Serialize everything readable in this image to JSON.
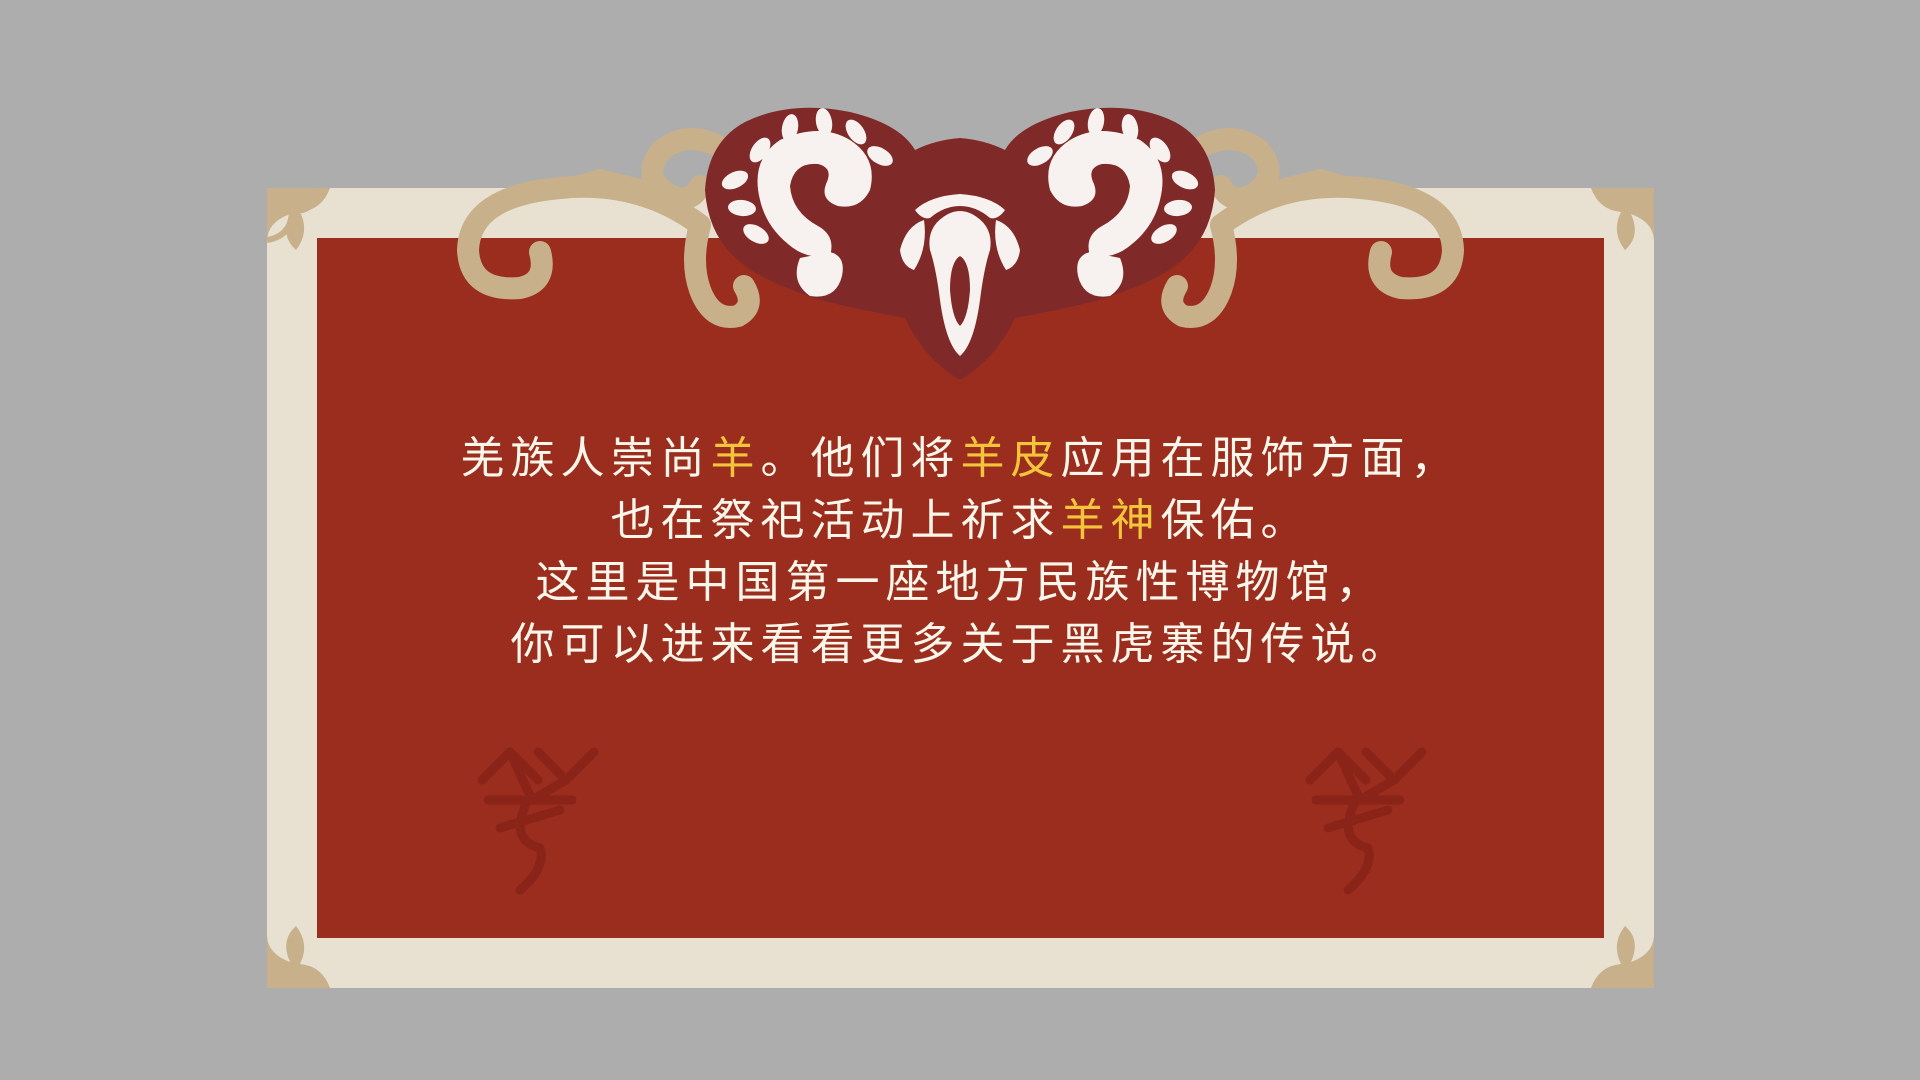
{
  "dialog": {
    "lines": [
      [
        {
          "text": "羌族人崇尚",
          "highlight": false
        },
        {
          "text": "羊",
          "highlight": true
        },
        {
          "text": "。他们将",
          "highlight": false
        },
        {
          "text": "羊皮",
          "highlight": true
        },
        {
          "text": "应用在服饰方面，",
          "highlight": false
        }
      ],
      [
        {
          "text": "也在祭祀活动上祈求",
          "highlight": false
        },
        {
          "text": "羊神",
          "highlight": true
        },
        {
          "text": "保佑。",
          "highlight": false
        }
      ],
      [
        {
          "text": "这里是中国第一座地方民族性博物馆，",
          "highlight": false
        }
      ],
      [
        {
          "text": "你可以进来看看更多关于黑虎寨的传说。",
          "highlight": false
        }
      ]
    ]
  },
  "icons": {
    "header": "ram-head-ornament-icon",
    "scroll_left": "scroll-flourish-left-icon",
    "scroll_right": "scroll-flourish-right-icon",
    "corner": "corner-ornament-icon",
    "glyph_left": "qiang-sheep-glyph-icon",
    "glyph_right": "qiang-sheep-glyph-icon"
  },
  "colors": {
    "background": "#adadad",
    "frame": "#e8e0d1",
    "panel": "#9b2d1f",
    "ornament_tan": "#c8b08a",
    "ram_dark": "#7f2a29",
    "ram_light": "#f7f2ef",
    "text": "#fbf6ea",
    "highlight": "#f3c53a",
    "glyph": "#8a2418"
  }
}
